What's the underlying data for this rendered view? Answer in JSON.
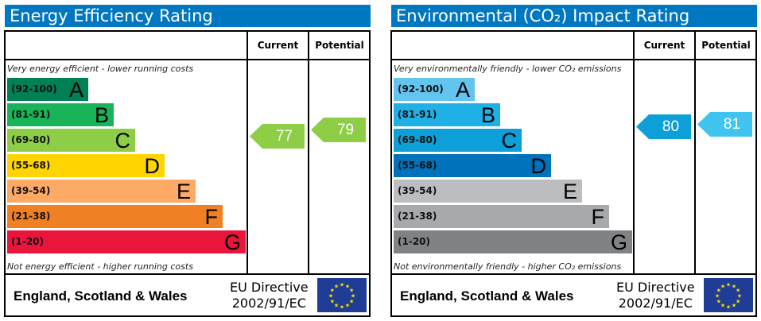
{
  "chart_data": [
    {
      "type": "bar",
      "title": "Energy Efficiency Rating",
      "columns": [
        "Current",
        "Potential"
      ],
      "top_note": "Very energy efficient - lower running costs",
      "bottom_note": "Not energy efficient - higher running costs",
      "bands": [
        {
          "range": "(92-100)",
          "letter": "A",
          "color": "#008054"
        },
        {
          "range": "(81-91)",
          "letter": "B",
          "color": "#19b459"
        },
        {
          "range": "(69-80)",
          "letter": "C",
          "color": "#8dce46"
        },
        {
          "range": "(55-68)",
          "letter": "D",
          "color": "#ffd500"
        },
        {
          "range": "(39-54)",
          "letter": "E",
          "color": "#fcaa65"
        },
        {
          "range": "(21-38)",
          "letter": "F",
          "color": "#ef8023"
        },
        {
          "range": "(1-20)",
          "letter": "G",
          "color": "#e9153b"
        }
      ],
      "current": {
        "value": 77,
        "color": "#8dce46"
      },
      "potential": {
        "value": 79,
        "color": "#8dce46"
      },
      "footer_region": "England, Scotland & Wales",
      "footer_directive": [
        "EU Directive",
        "2002/91/EC"
      ]
    },
    {
      "type": "bar",
      "title": "Environmental (CO₂) Impact Rating",
      "columns": [
        "Current",
        "Potential"
      ],
      "top_note": "Very environmentally friendly - lower CO₂ emissions",
      "bottom_note": "Not environmentally friendly - higher CO₂ emissions",
      "bands": [
        {
          "range": "(92-100)",
          "letter": "A",
          "color": "#63c5ef"
        },
        {
          "range": "(81-91)",
          "letter": "B",
          "color": "#1fb1e6"
        },
        {
          "range": "(69-80)",
          "letter": "C",
          "color": "#0c9fd8"
        },
        {
          "range": "(55-68)",
          "letter": "D",
          "color": "#0072bb"
        },
        {
          "range": "(39-54)",
          "letter": "E",
          "color": "#bbbdbf"
        },
        {
          "range": "(21-38)",
          "letter": "F",
          "color": "#a7a9ac"
        },
        {
          "range": "(1-20)",
          "letter": "G",
          "color": "#808285"
        }
      ],
      "current": {
        "value": 80,
        "color": "#0c9fd8"
      },
      "potential": {
        "value": 81,
        "color": "#3fc4ef"
      },
      "footer_region": "England, Scotland & Wales",
      "footer_directive": [
        "EU Directive",
        "2002/91/EC"
      ]
    }
  ]
}
